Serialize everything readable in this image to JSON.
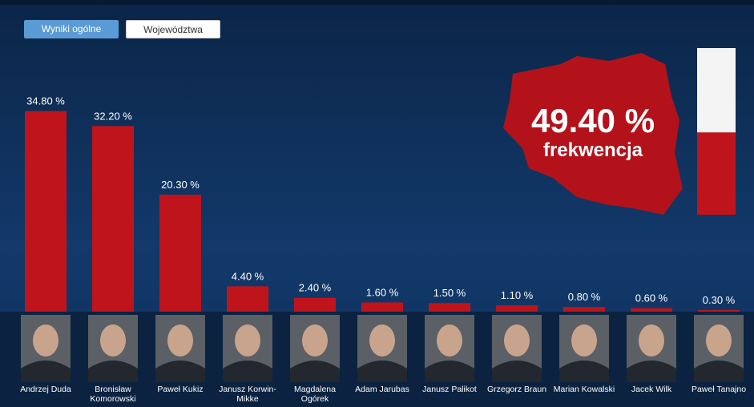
{
  "buttons": [
    "Wyniki ogólne",
    "Województwa"
  ],
  "turnout": {
    "value": 49.4,
    "value_label": "49.40 %",
    "label": "frekwencja",
    "ylim": [
      0,
      100
    ]
  },
  "chart_data": {
    "type": "bar",
    "color": "#c0141c",
    "categories": [
      "Andrzej Duda",
      "Bronisław Komorowski",
      "Paweł Kukiz",
      "Janusz Korwin-Mikke",
      "Magdalena Ogórek",
      "Adam Jarubas",
      "Janusz Palikot",
      "Grzegorz Braun",
      "Marian Kowalski",
      "Jacek Wilk",
      "Paweł Tanajno"
    ],
    "values": [
      34.8,
      32.2,
      20.3,
      4.4,
      2.4,
      1.6,
      1.5,
      1.1,
      0.8,
      0.6,
      0.3
    ],
    "value_labels": [
      "34.80 %",
      "32.20 %",
      "20.30 %",
      "4.40 %",
      "2.40 %",
      "1.60 %",
      "1.50 %",
      "1.10 %",
      "0.80 %",
      "0.60 %",
      "0.30 %"
    ],
    "ylim": [
      0,
      36
    ]
  }
}
